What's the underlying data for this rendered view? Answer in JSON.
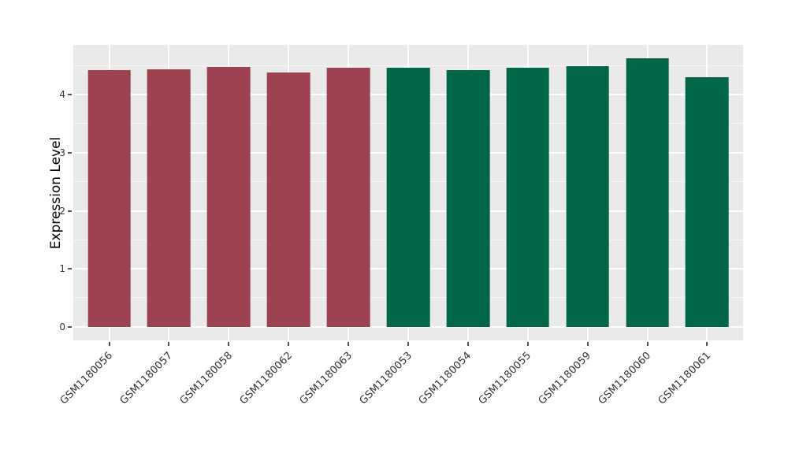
{
  "figure": {
    "background_color": "#FFFFFF",
    "panel_color": "#EAEAEA",
    "grid_color": "#FFFFFF",
    "tick_text_color": "#333333",
    "tick_mark_color": "#555555",
    "axis_title_color": "#000000"
  },
  "chart_data": {
    "type": "bar",
    "title": "",
    "xlabel": "",
    "ylabel": "Expression Level",
    "categories": [
      "GSM1180056",
      "GSM1180057",
      "GSM1180058",
      "GSM1180062",
      "GSM1180063",
      "GSM1180053",
      "GSM1180054",
      "GSM1180055",
      "GSM1180059",
      "GSM1180060",
      "GSM1180061"
    ],
    "values": [
      4.42,
      4.44,
      4.48,
      4.39,
      4.47,
      4.46,
      4.43,
      4.47,
      4.5,
      4.63,
      4.31
    ],
    "bar_colors": [
      "#9C4251",
      "#9C4251",
      "#9C4251",
      "#9C4251",
      "#9C4251",
      "#006647",
      "#006647",
      "#006647",
      "#006647",
      "#006647",
      "#006647"
    ],
    "groups": [
      {
        "color": "#9C4251",
        "samples": [
          "GSM1180056",
          "GSM1180057",
          "GSM1180058",
          "GSM1180062",
          "GSM1180063"
        ]
      },
      {
        "color": "#006647",
        "samples": [
          "GSM1180053",
          "GSM1180054",
          "GSM1180055",
          "GSM1180059",
          "GSM1180060",
          "GSM1180061"
        ]
      }
    ],
    "yticks": [
      0,
      1,
      2,
      3,
      4
    ],
    "ytick_labels": [
      "0",
      "1",
      "2",
      "3",
      "4"
    ],
    "yticks_minor": [
      0.5,
      1.5,
      2.5,
      3.5,
      4.5
    ],
    "ylim": [
      -0.23,
      4.86
    ],
    "bar_width": 0.72,
    "grid": true,
    "legend_position": "none",
    "x_label_rotation_deg": 45
  }
}
